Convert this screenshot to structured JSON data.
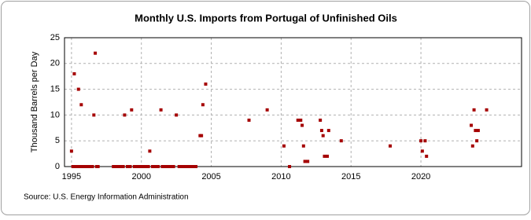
{
  "chart_data": {
    "type": "scatter",
    "title": "Monthly U.S. Imports from Portugal of Unfinished Oils",
    "y_label": "Thousand Barrels per Day",
    "source": "Source: U.S. Energy Information Administration",
    "color": "#a50000",
    "x": [
      1995.0,
      1995.1,
      1995.2,
      1995.3,
      1995.4,
      1995.5,
      1995.6,
      1995.7,
      1995.8,
      1995.9,
      1996.1,
      1996.3,
      1996.4,
      1996.5,
      1996.6,
      1996.7,
      1996.8,
      1996.9,
      1998.0,
      1998.2,
      1998.3,
      1998.5,
      1998.7,
      1998.8,
      1999.0,
      1999.2,
      1999.3,
      1999.5,
      1999.7,
      1999.8,
      2000.0,
      2000.2,
      2000.3,
      2000.5,
      2000.6,
      2000.8,
      2001.0,
      2001.2,
      2001.4,
      2001.5,
      2001.7,
      2001.8,
      2002.0,
      2002.2,
      2002.3,
      2002.5,
      2002.7,
      2002.8,
      2003.0,
      2003.2,
      2003.3,
      2003.5,
      2003.7,
      2003.8,
      2003.9,
      2004.2,
      2004.3,
      2004.4,
      2004.6,
      2007.7,
      2009.0,
      2010.2,
      2010.6,
      2011.2,
      2011.4,
      2011.5,
      2011.6,
      2011.7,
      2011.9,
      2012.8,
      2012.9,
      2013.0,
      2013.1,
      2013.3,
      2013.4,
      2014.3,
      2017.8,
      2020.0,
      2020.1,
      2020.3,
      2020.4,
      2023.6,
      2023.7,
      2023.8,
      2023.9,
      2024.0,
      2024.1,
      2024.7
    ],
    "values": [
      3,
      0,
      18,
      0,
      0,
      15,
      0,
      12,
      0,
      0,
      0,
      0,
      0,
      0,
      10,
      22,
      0,
      0,
      0,
      0,
      0,
      0,
      0,
      10,
      0,
      0,
      11,
      0,
      0,
      0,
      0,
      0,
      0,
      0,
      3,
      0,
      0,
      0,
      11,
      0,
      0,
      0,
      0,
      0,
      0,
      10,
      0,
      0,
      0,
      0,
      0,
      0,
      0,
      0,
      0,
      6,
      6,
      12,
      16,
      9,
      11,
      4,
      0,
      9,
      9,
      8,
      4,
      1,
      1,
      9,
      7,
      6,
      2,
      2,
      7,
      5,
      4,
      5,
      3,
      5,
      2,
      8,
      4,
      11,
      7,
      5,
      7,
      11
    ],
    "xlim": [
      1994.5,
      2027.2
    ],
    "ylim": [
      0,
      25
    ],
    "xticks": [
      1995,
      2000,
      2005,
      2010,
      2015,
      2020
    ],
    "yticks": [
      0,
      5,
      10,
      15,
      20,
      25
    ],
    "grid": true
  }
}
